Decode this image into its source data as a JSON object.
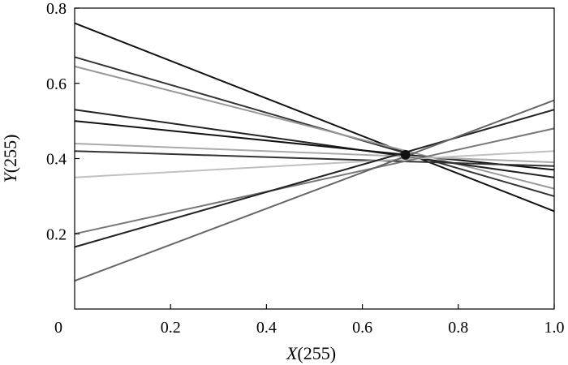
{
  "chart_data": {
    "type": "line",
    "xlabel": {
      "var": "X",
      "arg": "(255)"
    },
    "ylabel": {
      "var": "Y",
      "arg": "(255)"
    },
    "xlim": [
      0,
      1.0
    ],
    "ylim": [
      0,
      0.8
    ],
    "x_ticks": [
      {
        "value": 0.2,
        "label": "0.2"
      },
      {
        "value": 0.4,
        "label": "0.4"
      },
      {
        "value": 0.6,
        "label": "0.6"
      },
      {
        "value": 0.8,
        "label": "0.8"
      },
      {
        "value": 1.0,
        "label": "1.0"
      }
    ],
    "y_ticks": [
      {
        "value": 0.2,
        "label": "0.2"
      },
      {
        "value": 0.4,
        "label": "0.4"
      },
      {
        "value": 0.6,
        "label": "0.6"
      },
      {
        "value": 0.8,
        "label": "0.8"
      }
    ],
    "origin_label": "0",
    "grid": false,
    "point": {
      "x": 0.69,
      "y": 0.41,
      "color": "#111111"
    },
    "series": [
      {
        "x": [
          0,
          1.0
        ],
        "y": [
          0.76,
          0.26
        ],
        "color": "#111111"
      },
      {
        "x": [
          0,
          1.0
        ],
        "y": [
          0.67,
          0.3
        ],
        "color": "#333333"
      },
      {
        "x": [
          0,
          1.0
        ],
        "y": [
          0.645,
          0.32
        ],
        "color": "#999999"
      },
      {
        "x": [
          0,
          1.0
        ],
        "y": [
          0.53,
          0.35
        ],
        "color": "#222222"
      },
      {
        "x": [
          0,
          1.0
        ],
        "y": [
          0.5,
          0.37
        ],
        "color": "#111111"
      },
      {
        "x": [
          0,
          1.0
        ],
        "y": [
          0.44,
          0.39
        ],
        "color": "#aaaaaa"
      },
      {
        "x": [
          0,
          1.0
        ],
        "y": [
          0.42,
          0.38
        ],
        "color": "#333333"
      },
      {
        "x": [
          0,
          1.0
        ],
        "y": [
          0.35,
          0.42
        ],
        "color": "#c0c0c0"
      },
      {
        "x": [
          0,
          1.0
        ],
        "y": [
          0.2,
          0.48
        ],
        "color": "#777777"
      },
      {
        "x": [
          0,
          1.0
        ],
        "y": [
          0.165,
          0.53
        ],
        "color": "#222222"
      },
      {
        "x": [
          0,
          1.0
        ],
        "y": [
          0.075,
          0.555
        ],
        "color": "#666666"
      }
    ]
  }
}
